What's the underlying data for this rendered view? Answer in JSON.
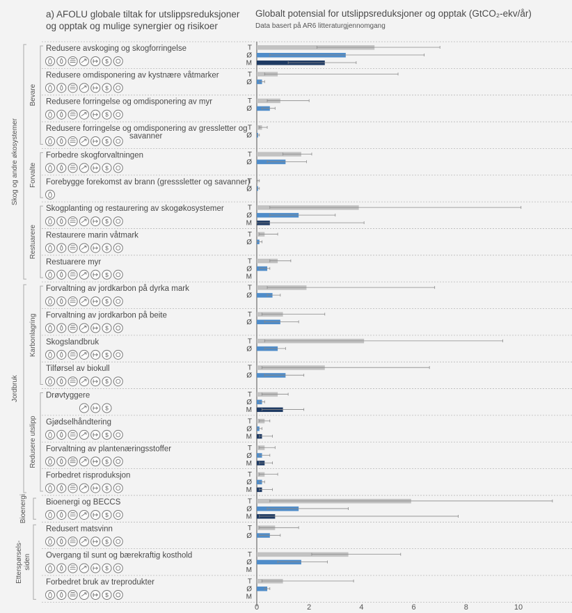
{
  "left_title": "a) AFOLU globale tiltak for utslippsreduksjoner og opptak og mulige synergier og risikoer",
  "chart_data": {
    "type": "bar",
    "title": "Globalt potensial for utslippsreduksjoner og opptak (GtCO₂-ekv/år)",
    "subtitle": "Data basert på AR6 litteraturgjennomgang",
    "xlim": [
      0,
      11.5
    ],
    "xticks": [
      "0",
      "2",
      "4",
      "6",
      "8",
      "10"
    ],
    "xtick_values": [
      0,
      2,
      4,
      6,
      8,
      10
    ],
    "series": [
      {
        "key": "T",
        "color": "#c2c2c2"
      },
      {
        "key": "Ø",
        "color": "#4f8cc9"
      },
      {
        "key": "M",
        "color": "#1e3a63"
      }
    ],
    "groups": [
      {
        "name": "Skog og andre økosystemer",
        "subgroups": [
          {
            "name": "Bevare",
            "measures": [
              {
                "name": "Redusere avskoging og skogforringelse",
                "icons": "1111111",
                "bars": [
                  {
                    "s": "T",
                    "v": 4.5,
                    "lo": 2.3,
                    "hi": 7.0
                  },
                  {
                    "s": "Ø",
                    "v": 3.4,
                    "lo": 0.5,
                    "hi": 6.4
                  },
                  {
                    "s": "M",
                    "v": 2.6,
                    "lo": 1.2,
                    "hi": 3.8
                  }
                ]
              },
              {
                "name": "Redusere omdisponering av kystnære våtmarker",
                "icons": "1111111",
                "bars": [
                  {
                    "s": "T",
                    "v": 0.8,
                    "lo": 0.3,
                    "hi": 5.4
                  },
                  {
                    "s": "Ø",
                    "v": 0.2,
                    "lo": 0.1,
                    "hi": 0.3
                  }
                ]
              },
              {
                "name": "Redusere forringelse og omdisponering av myr",
                "icons": "1111111",
                "bars": [
                  {
                    "s": "T",
                    "v": 0.9,
                    "lo": 0.4,
                    "hi": 2.0
                  },
                  {
                    "s": "Ø",
                    "v": 0.5,
                    "lo": 0.2,
                    "hi": 0.7
                  }
                ]
              },
              {
                "name": "Redusere forringelse og omdisponering av gressletter og savanner",
                "icons": "1111111",
                "bars": [
                  {
                    "s": "T",
                    "v": 0.2,
                    "lo": 0.1,
                    "hi": 0.4
                  },
                  {
                    "s": "Ø",
                    "v": 0.05,
                    "lo": 0.0,
                    "hi": 0.1
                  }
                ]
              }
            ]
          },
          {
            "name": "Forvalte",
            "measures": [
              {
                "name": "Forbedre skogforvaltningen",
                "icons": "1111111",
                "bars": [
                  {
                    "s": "T",
                    "v": 1.7,
                    "lo": 1.0,
                    "hi": 2.1
                  },
                  {
                    "s": "Ø",
                    "v": 1.1,
                    "lo": 0.4,
                    "hi": 1.9
                  }
                ]
              },
              {
                "name": "Forebygge forekomst av brann (gresssletter og savanner)",
                "icons": "1000000",
                "bars": [
                  {
                    "s": "T",
                    "v": 0.05,
                    "lo": 0.0,
                    "hi": 0.1
                  },
                  {
                    "s": "Ø",
                    "v": 0.05,
                    "lo": 0.0,
                    "hi": 0.1
                  }
                ]
              }
            ]
          },
          {
            "name": "Restuarere",
            "measures": [
              {
                "name": "Skogplanting og restaurering av skogøkosystemer",
                "icons": "1111111",
                "bars": [
                  {
                    "s": "T",
                    "v": 3.9,
                    "lo": 0.5,
                    "hi": 10.1
                  },
                  {
                    "s": "Ø",
                    "v": 1.6,
                    "lo": 0.5,
                    "hi": 3.0
                  },
                  {
                    "s": "M",
                    "v": 0.5,
                    "lo": 0.0,
                    "hi": 4.1
                  }
                ]
              },
              {
                "name": "Restaurere marin våtmark",
                "icons": "1111111",
                "bars": [
                  {
                    "s": "T",
                    "v": 0.3,
                    "lo": 0.1,
                    "hi": 0.8
                  },
                  {
                    "s": "Ø",
                    "v": 0.1,
                    "lo": 0.0,
                    "hi": 0.2
                  }
                ]
              },
              {
                "name": "Restuarere myr",
                "icons": "1111111",
                "bars": [
                  {
                    "s": "T",
                    "v": 0.8,
                    "lo": 0.5,
                    "hi": 1.3
                  },
                  {
                    "s": "Ø",
                    "v": 0.4,
                    "lo": 0.1,
                    "hi": 0.5
                  },
                  {
                    "s": "M",
                    "v": 0,
                    "lo": 0,
                    "hi": 0
                  }
                ]
              }
            ]
          }
        ]
      },
      {
        "name": "Jordbruk",
        "subgroups": [
          {
            "name": "Karbonlagring",
            "measures": [
              {
                "name": "Forvaltning av jordkarbon på dyrka mark",
                "icons": "1111111",
                "bars": [
                  {
                    "s": "T",
                    "v": 1.9,
                    "lo": 0.4,
                    "hi": 6.8
                  },
                  {
                    "s": "Ø",
                    "v": 0.6,
                    "lo": 0.4,
                    "hi": 0.9
                  }
                ]
              },
              {
                "name": "Forvaltning av jordkarbon på beite",
                "icons": "1111111",
                "bars": [
                  {
                    "s": "T",
                    "v": 1.0,
                    "lo": 0.2,
                    "hi": 2.6
                  },
                  {
                    "s": "Ø",
                    "v": 0.9,
                    "lo": 0.3,
                    "hi": 1.6
                  }
                ]
              },
              {
                "name": "Skogslandbruk",
                "icons": "1111111",
                "bars": [
                  {
                    "s": "T",
                    "v": 4.1,
                    "lo": 0.3,
                    "hi": 9.4
                  },
                  {
                    "s": "Ø",
                    "v": 0.8,
                    "lo": 0.3,
                    "hi": 1.1
                  }
                ]
              },
              {
                "name": "Tilførsel av biokull",
                "icons": "1111111",
                "bars": [
                  {
                    "s": "T",
                    "v": 2.6,
                    "lo": 0.2,
                    "hi": 6.6
                  },
                  {
                    "s": "Ø",
                    "v": 1.1,
                    "lo": 0.3,
                    "hi": 1.8
                  }
                ]
              }
            ]
          },
          {
            "name": "Redusere utslipp",
            "measures": [
              {
                "name": "Drøvtyggere",
                "icons": "0001110",
                "bars": [
                  {
                    "s": "T",
                    "v": 0.8,
                    "lo": 0.2,
                    "hi": 1.2
                  },
                  {
                    "s": "Ø",
                    "v": 0.2,
                    "lo": 0.1,
                    "hi": 0.3
                  },
                  {
                    "s": "M",
                    "v": 1.0,
                    "lo": 0.2,
                    "hi": 1.8
                  }
                ]
              },
              {
                "name": "Gjødselhåndtering",
                "icons": "1111111",
                "bars": [
                  {
                    "s": "T",
                    "v": 0.3,
                    "lo": 0.1,
                    "hi": 0.5
                  },
                  {
                    "s": "Ø",
                    "v": 0.1,
                    "lo": 0.0,
                    "hi": 0.2
                  },
                  {
                    "s": "M",
                    "v": 0.2,
                    "lo": 0.1,
                    "hi": 0.6
                  }
                ]
              },
              {
                "name": "Forvaltning av plantenæringsstoffer",
                "icons": "1111111",
                "bars": [
                  {
                    "s": "T",
                    "v": 0.3,
                    "lo": 0.1,
                    "hi": 0.7
                  },
                  {
                    "s": "Ø",
                    "v": 0.2,
                    "lo": 0.1,
                    "hi": 0.5
                  },
                  {
                    "s": "M",
                    "v": 0.3,
                    "lo": 0.1,
                    "hi": 0.6
                  }
                ]
              },
              {
                "name": "Forbedret risproduksjon",
                "icons": "1111111",
                "bars": [
                  {
                    "s": "T",
                    "v": 0.3,
                    "lo": 0.1,
                    "hi": 0.8
                  },
                  {
                    "s": "Ø",
                    "v": 0.2,
                    "lo": 0.1,
                    "hi": 0.3
                  },
                  {
                    "s": "M",
                    "v": 0.2,
                    "lo": 0.1,
                    "hi": 0.6
                  }
                ]
              }
            ]
          }
        ]
      },
      {
        "name": "Bioenergi",
        "subgroups": [
          {
            "name": "",
            "measures": [
              {
                "name": "Bioenergi og BECCS",
                "icons": "1111111",
                "bars": [
                  {
                    "s": "T",
                    "v": 5.9,
                    "lo": 0.5,
                    "hi": 11.3
                  },
                  {
                    "s": "Ø",
                    "v": 1.6,
                    "lo": 0.4,
                    "hi": 3.5
                  },
                  {
                    "s": "M",
                    "v": 0.7,
                    "lo": 0.1,
                    "hi": 7.7
                  }
                ]
              }
            ]
          }
        ]
      },
      {
        "name": "Etterspørsels-\nsiden",
        "subgroups": [
          {
            "name": "",
            "measures": [
              {
                "name": "Redusert matsvinn",
                "icons": "1111111",
                "bars": [
                  {
                    "s": "T",
                    "v": 0.7,
                    "lo": 0.1,
                    "hi": 1.6
                  },
                  {
                    "s": "Ø",
                    "v": 0.5,
                    "lo": 0.1,
                    "hi": 0.9
                  }
                ]
              },
              {
                "name": "Overgang til sunt og bærekraftig kosthold",
                "icons": "1111111",
                "bars": [
                  {
                    "s": "T",
                    "v": 3.5,
                    "lo": 2.1,
                    "hi": 5.5
                  },
                  {
                    "s": "Ø",
                    "v": 1.7,
                    "lo": 0.8,
                    "hi": 2.7
                  },
                  {
                    "s": "M",
                    "v": 0,
                    "lo": 0,
                    "hi": 0
                  }
                ]
              },
              {
                "name": "Forbedret bruk av treprodukter",
                "icons": "1111111",
                "bars": [
                  {
                    "s": "T",
                    "v": 1.0,
                    "lo": 0.2,
                    "hi": 3.7
                  },
                  {
                    "s": "Ø",
                    "v": 0.4,
                    "lo": 0.3,
                    "hi": 0.5
                  },
                  {
                    "s": "M",
                    "v": 0,
                    "lo": 0,
                    "hi": 0
                  }
                ]
              }
            ]
          }
        ]
      }
    ]
  }
}
